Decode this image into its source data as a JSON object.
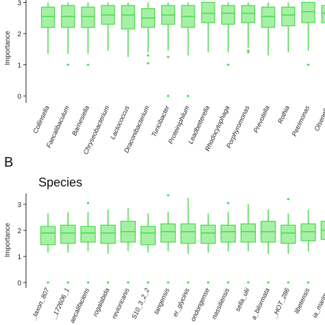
{
  "panel_letter": "B",
  "panel_title": "Species",
  "colors": {
    "box_fill": "#a6f0a6",
    "box_stroke": "#48d848",
    "axis": "#222222"
  },
  "chart_data": [
    {
      "type": "box",
      "title": "",
      "ylabel": "Importance",
      "ylim": [
        0,
        3
      ],
      "yticks": [
        0,
        1,
        2,
        3
      ],
      "categories": [
        "Collinsella",
        "Faecalibaculum",
        "Barnesiella",
        "Chryseobacterium",
        "Lactococcus",
        "Draconibacterium",
        "Turicibacter",
        "Proteiniphilum",
        "Leadbetterella",
        "Rhodocytophaga",
        "Porphyromonas",
        "Prevotella",
        "Rothia",
        "Petrimonas",
        "Olsenella"
      ],
      "boxes": [
        {
          "min": 1.35,
          "q1": 2.2,
          "median": 2.55,
          "q3": 2.85,
          "max": 3.0,
          "outliers": []
        },
        {
          "min": 1.35,
          "q1": 2.2,
          "median": 2.55,
          "q3": 2.9,
          "max": 3.0,
          "outliers": [
            1.0
          ]
        },
        {
          "min": 1.35,
          "q1": 2.2,
          "median": 2.55,
          "q3": 2.85,
          "max": 3.0,
          "outliers": [
            1.0
          ]
        },
        {
          "min": 1.45,
          "q1": 2.3,
          "median": 2.6,
          "q3": 2.9,
          "max": 3.0,
          "outliers": []
        },
        {
          "min": 1.25,
          "q1": 2.15,
          "median": 2.6,
          "q3": 2.9,
          "max": 3.0,
          "outliers": []
        },
        {
          "min": 1.4,
          "q1": 2.2,
          "median": 2.5,
          "q3": 2.8,
          "max": 3.0,
          "outliers": [
            1.05,
            1.3
          ]
        },
        {
          "min": 1.45,
          "q1": 2.3,
          "median": 2.6,
          "q3": 2.9,
          "max": 3.0,
          "outliers": [
            1.25,
            0.0
          ]
        },
        {
          "min": 1.3,
          "q1": 2.2,
          "median": 2.55,
          "q3": 2.9,
          "max": 3.0,
          "outliers": [
            0.0
          ]
        },
        {
          "min": 1.4,
          "q1": 2.35,
          "median": 2.65,
          "q3": 3.0,
          "max": 3.0,
          "outliers": []
        },
        {
          "min": 1.4,
          "q1": 2.3,
          "median": 2.65,
          "q3": 2.9,
          "max": 3.0,
          "outliers": [
            1.0
          ]
        },
        {
          "min": 1.55,
          "q1": 2.35,
          "median": 2.65,
          "q3": 2.9,
          "max": 3.0,
          "outliers": [
            1.45,
            1.4
          ]
        },
        {
          "min": 1.3,
          "q1": 2.2,
          "median": 2.55,
          "q3": 2.85,
          "max": 3.0,
          "outliers": []
        },
        {
          "min": 1.4,
          "q1": 2.25,
          "median": 2.6,
          "q3": 2.85,
          "max": 3.0,
          "outliers": []
        },
        {
          "min": 1.45,
          "q1": 2.35,
          "median": 2.7,
          "q3": 3.0,
          "max": 3.0,
          "outliers": [
            1.0
          ]
        },
        {
          "min": 1.5,
          "q1": 2.35,
          "median": 2.65,
          "q3": 2.9,
          "max": 3.0,
          "outliers": []
        }
      ]
    },
    {
      "type": "box",
      "title": "Species",
      "ylabel": "Importance",
      "ylim": [
        0,
        3.3
      ],
      "yticks": [
        0,
        1,
        2,
        3
      ],
      "categories": [
        "_taxon_807",
        "_172606_1",
        "aecalifaciens",
        "rogalabida",
        "revioricanis",
        "S10_3_2_2",
        "tangensis",
        "er_glycinis",
        "ondongense",
        "nassiliensis",
        "sella_ulii",
        "a_bilormata",
        "_HOT_286",
        "libetensis",
        "ia_marinus"
      ],
      "boxes": [
        {
          "min": 1.15,
          "q1": 1.45,
          "median": 1.9,
          "q3": 2.15,
          "max": 2.65,
          "outliers": [
            0.0
          ]
        },
        {
          "min": 1.15,
          "q1": 1.5,
          "median": 1.9,
          "q3": 2.2,
          "max": 2.7,
          "outliers": [
            0.0
          ]
        },
        {
          "min": 1.2,
          "q1": 1.55,
          "median": 1.9,
          "q3": 2.15,
          "max": 2.7,
          "outliers": [
            3.05,
            0.0
          ]
        },
        {
          "min": 1.1,
          "q1": 1.5,
          "median": 1.9,
          "q3": 2.2,
          "max": 2.8,
          "outliers": [
            0.0
          ]
        },
        {
          "min": 1.2,
          "q1": 1.55,
          "median": 1.95,
          "q3": 2.35,
          "max": 2.85,
          "outliers": [
            0.0
          ]
        },
        {
          "min": 1.15,
          "q1": 1.45,
          "median": 1.9,
          "q3": 2.15,
          "max": 2.65,
          "outliers": [
            0.0
          ]
        },
        {
          "min": 1.2,
          "q1": 1.55,
          "median": 1.95,
          "q3": 2.25,
          "max": 2.7,
          "outliers": [
            3.35,
            0.0
          ]
        },
        {
          "min": 1.1,
          "q1": 1.5,
          "median": 1.95,
          "q3": 2.25,
          "max": 3.25,
          "outliers": [
            0.0
          ]
        },
        {
          "min": 1.15,
          "q1": 1.5,
          "median": 1.9,
          "q3": 2.2,
          "max": 2.65,
          "outliers": [
            0.0
          ]
        },
        {
          "min": 1.2,
          "q1": 1.55,
          "median": 1.95,
          "q3": 2.2,
          "max": 2.7,
          "outliers": [
            3.05,
            0.0
          ]
        },
        {
          "min": 1.2,
          "q1": 1.55,
          "median": 1.95,
          "q3": 2.25,
          "max": 3.0,
          "outliers": [
            0.0
          ]
        },
        {
          "min": 1.1,
          "q1": 1.55,
          "median": 1.95,
          "q3": 2.35,
          "max": 2.8,
          "outliers": [
            0.0
          ]
        },
        {
          "min": 1.1,
          "q1": 1.5,
          "median": 1.9,
          "q3": 2.2,
          "max": 2.65,
          "outliers": [
            3.2,
            0.0
          ]
        },
        {
          "min": 1.2,
          "q1": 1.6,
          "median": 1.95,
          "q3": 2.25,
          "max": 2.8,
          "outliers": [
            0.0
          ]
        },
        {
          "min": 1.25,
          "q1": 1.65,
          "median": 2.0,
          "q3": 2.35,
          "max": 2.9,
          "outliers": [
            0.0
          ]
        }
      ]
    }
  ]
}
